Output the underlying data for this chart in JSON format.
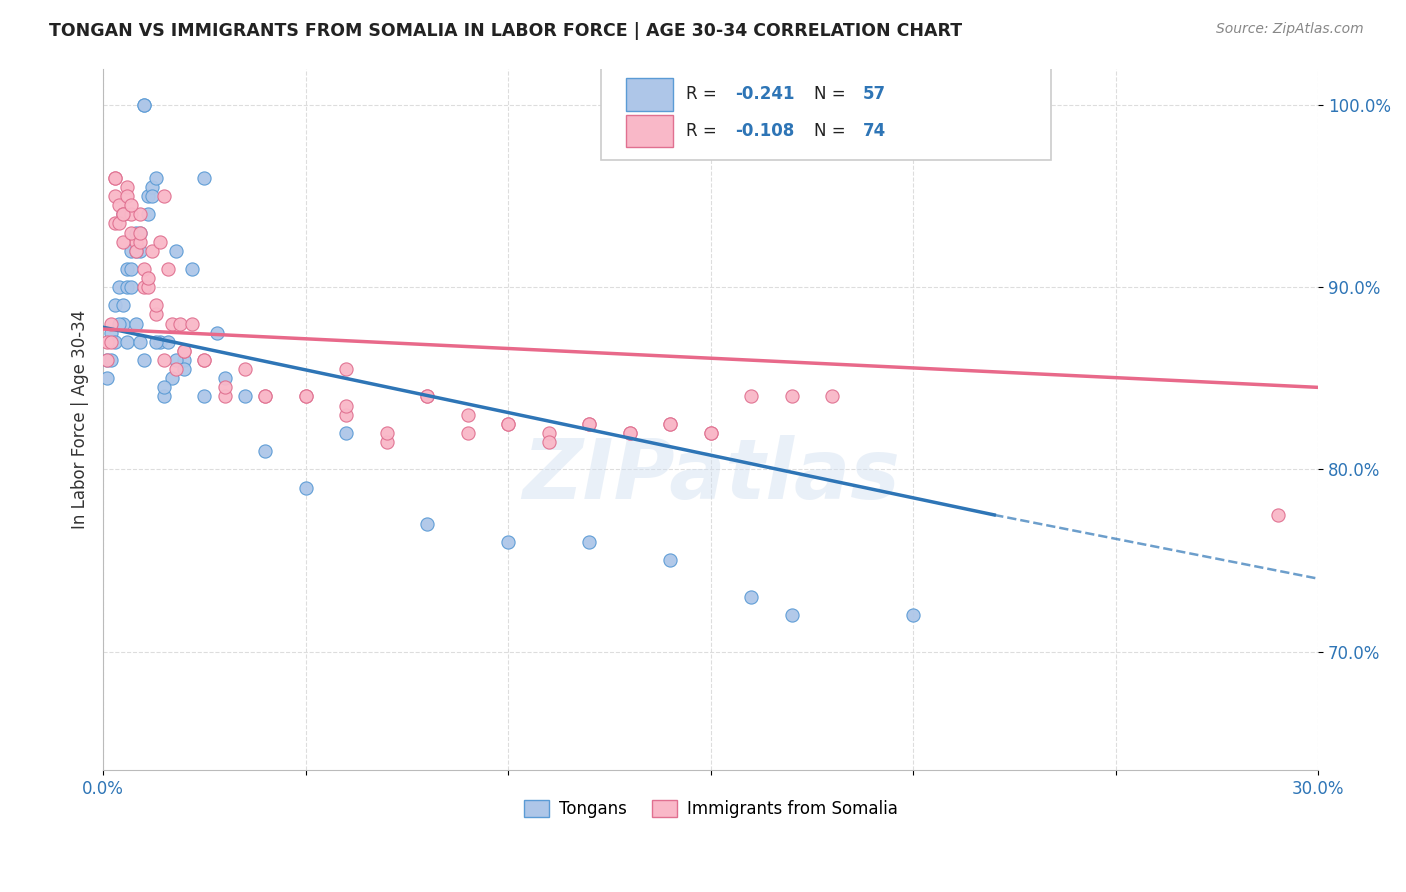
{
  "title": "TONGAN VS IMMIGRANTS FROM SOMALIA IN LABOR FORCE | AGE 30-34 CORRELATION CHART",
  "source": "Source: ZipAtlas.com",
  "ylabel": "In Labor Force | Age 30-34",
  "xlim": [
    0.0,
    0.3
  ],
  "ylim": [
    0.635,
    1.02
  ],
  "yticks": [
    0.7,
    0.8,
    0.9,
    1.0
  ],
  "ytick_labels": [
    "70.0%",
    "80.0%",
    "90.0%",
    "100.0%"
  ],
  "xticks": [
    0.0,
    0.05,
    0.1,
    0.15,
    0.2,
    0.25,
    0.3
  ],
  "xtick_labels": [
    "0.0%",
    "",
    "",
    "",
    "",
    "",
    "30.0%"
  ],
  "tongans_color": "#aec6e8",
  "somalia_color": "#f9b8c8",
  "tongans_edge": "#5b9bd5",
  "somalia_edge": "#e07090",
  "trend_tongans_color": "#2E75B6",
  "trend_somalia_color": "#E8698A",
  "legend_R1": "-0.241",
  "legend_N1": "57",
  "legend_R2": "-0.108",
  "legend_N2": "74",
  "watermark": "ZIPatlas",
  "tongans_x": [
    0.001,
    0.002,
    0.003,
    0.004,
    0.005,
    0.006,
    0.007,
    0.008,
    0.009,
    0.01,
    0.001,
    0.002,
    0.003,
    0.004,
    0.005,
    0.006,
    0.007,
    0.008,
    0.009,
    0.01,
    0.011,
    0.012,
    0.013,
    0.014,
    0.015,
    0.016,
    0.017,
    0.018,
    0.02,
    0.022,
    0.025,
    0.028,
    0.03,
    0.035,
    0.04,
    0.05,
    0.06,
    0.08,
    0.1,
    0.12,
    0.14,
    0.16,
    0.005,
    0.006,
    0.007,
    0.008,
    0.009,
    0.01,
    0.011,
    0.012,
    0.013,
    0.015,
    0.018,
    0.02,
    0.025,
    0.17,
    0.2
  ],
  "tongans_y": [
    0.86,
    0.875,
    0.89,
    0.9,
    0.88,
    0.91,
    0.92,
    0.93,
    0.92,
    1.0,
    0.85,
    0.86,
    0.87,
    0.88,
    0.89,
    0.9,
    0.91,
    0.92,
    0.93,
    1.0,
    0.95,
    0.955,
    0.96,
    0.87,
    0.84,
    0.87,
    0.85,
    0.92,
    0.86,
    0.91,
    0.96,
    0.875,
    0.85,
    0.84,
    0.81,
    0.79,
    0.82,
    0.77,
    0.76,
    0.76,
    0.75,
    0.73,
    0.94,
    0.87,
    0.9,
    0.88,
    0.87,
    0.86,
    0.94,
    0.95,
    0.87,
    0.845,
    0.86,
    0.855,
    0.84,
    0.72,
    0.72
  ],
  "somalia_x": [
    0.001,
    0.002,
    0.003,
    0.004,
    0.005,
    0.006,
    0.007,
    0.008,
    0.009,
    0.01,
    0.001,
    0.002,
    0.003,
    0.004,
    0.005,
    0.006,
    0.007,
    0.008,
    0.009,
    0.01,
    0.011,
    0.012,
    0.013,
    0.014,
    0.015,
    0.016,
    0.017,
    0.018,
    0.019,
    0.02,
    0.022,
    0.025,
    0.03,
    0.035,
    0.04,
    0.05,
    0.06,
    0.07,
    0.08,
    0.09,
    0.1,
    0.11,
    0.12,
    0.13,
    0.14,
    0.15,
    0.003,
    0.005,
    0.007,
    0.009,
    0.011,
    0.013,
    0.015,
    0.02,
    0.025,
    0.03,
    0.04,
    0.05,
    0.06,
    0.07,
    0.08,
    0.09,
    0.1,
    0.11,
    0.12,
    0.13,
    0.14,
    0.15,
    0.16,
    0.17,
    0.18,
    0.29,
    0.003,
    0.06
  ],
  "somalia_y": [
    0.87,
    0.88,
    0.95,
    0.945,
    0.94,
    0.955,
    0.94,
    0.925,
    0.94,
    0.91,
    0.86,
    0.87,
    0.935,
    0.935,
    0.925,
    0.95,
    0.93,
    0.92,
    0.925,
    0.9,
    0.9,
    0.92,
    0.885,
    0.925,
    0.95,
    0.91,
    0.88,
    0.855,
    0.88,
    0.865,
    0.88,
    0.86,
    0.84,
    0.855,
    0.84,
    0.84,
    0.83,
    0.815,
    0.84,
    0.83,
    0.825,
    0.82,
    0.825,
    0.82,
    0.825,
    0.82,
    0.96,
    0.94,
    0.945,
    0.93,
    0.905,
    0.89,
    0.86,
    0.865,
    0.86,
    0.845,
    0.84,
    0.84,
    0.835,
    0.82,
    0.84,
    0.82,
    0.825,
    0.815,
    0.825,
    0.82,
    0.825,
    0.82,
    0.84,
    0.84,
    0.84,
    0.775,
    0.96,
    0.855
  ]
}
